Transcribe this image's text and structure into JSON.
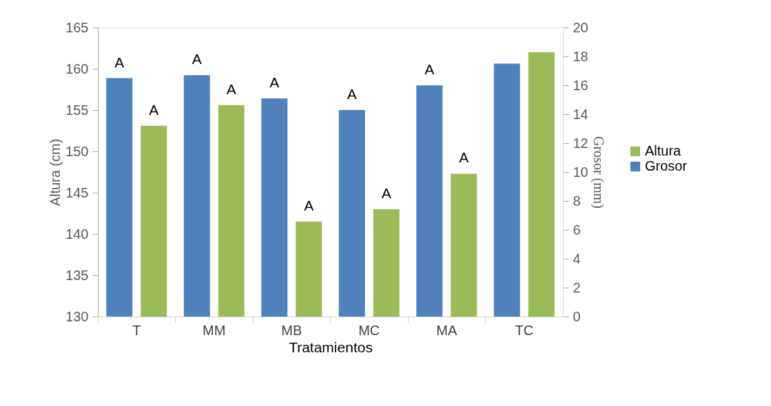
{
  "chart_data": {
    "type": "bar",
    "xlabel": "Tratamientos",
    "ylabel": "Altura (cm)",
    "y2label": "Grosor (mm)",
    "categories": [
      "T",
      "MM",
      "MB",
      "MC",
      "MA",
      "TC"
    ],
    "series": [
      {
        "name": "Grosor",
        "color": "#4f81bd",
        "axis": "y2",
        "values": [
          16.5,
          16.7,
          15.1,
          14.3,
          16.0,
          17.5
        ],
        "value_labels": [
          "A",
          "A",
          "A",
          "A",
          "A",
          null
        ]
      },
      {
        "name": "Altura",
        "color": "#9bbb59",
        "values": [
          153.1,
          155.6,
          141.5,
          143.0,
          147.3,
          162.0
        ],
        "value_labels": [
          "A",
          "A",
          "A",
          "A",
          "A",
          null
        ]
      }
    ],
    "ylim": [
      130,
      165
    ],
    "yticks": [
      130,
      135,
      140,
      145,
      150,
      155,
      160,
      165
    ],
    "y2lim": [
      0,
      20
    ],
    "y2ticks": [
      0,
      2,
      4,
      6,
      8,
      10,
      12,
      14,
      16,
      18,
      20
    ],
    "grid": false,
    "legend": "right"
  }
}
